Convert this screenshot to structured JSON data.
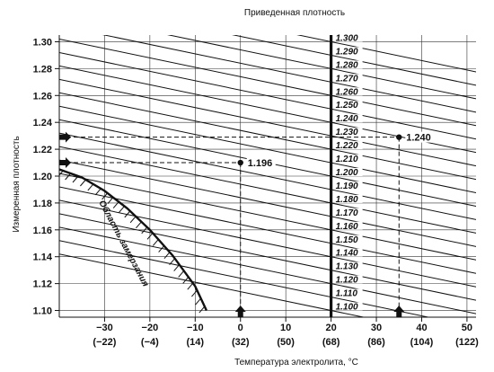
{
  "chart_data": {
    "type": "line",
    "title": "Приведенная плотность",
    "xlabel": "Температура электролита, °С",
    "ylabel": "Измеренная плотность",
    "x_ticks": [
      {
        "c": "−30",
        "f": "(−22)"
      },
      {
        "c": "−20",
        "f": "(−4)"
      },
      {
        "c": "−10",
        "f": "(14)"
      },
      {
        "c": "0",
        "f": "(32)"
      },
      {
        "c": "10",
        "f": "(50)"
      },
      {
        "c": "20",
        "f": "(68)"
      },
      {
        "c": "30",
        "f": "(86)"
      },
      {
        "c": "40",
        "f": "(104)"
      },
      {
        "c": "50",
        "f": "(122)"
      }
    ],
    "y_ticks": [
      "1.10",
      "1.12",
      "1.14",
      "1.16",
      "1.18",
      "1.20",
      "1.22",
      "1.24",
      "1.26",
      "1.28",
      "1.30"
    ],
    "xlim": [
      -40,
      52
    ],
    "ylim": [
      1.095,
      1.305
    ],
    "grid": true,
    "reference_temperature": 20,
    "slope_per_degree": -0.0007,
    "series_labels": [
      "1.300",
      "1.290",
      "1.280",
      "1.270",
      "1.260",
      "1.250",
      "1.240",
      "1.230",
      "1.220",
      "1.210",
      "1.200",
      "1.190",
      "1.180",
      "1.170",
      "1.160",
      "1.150",
      "1.140",
      "1.130",
      "1.120",
      "1.110",
      "1.100"
    ],
    "freezing_zone_label": "Область замерзания",
    "freezing_boundary": [
      {
        "x": -40,
        "y": 1.205
      },
      {
        "x": -35,
        "y": 1.199
      },
      {
        "x": -30,
        "y": 1.189
      },
      {
        "x": -25,
        "y": 1.176
      },
      {
        "x": -20,
        "y": 1.16
      },
      {
        "x": -15,
        "y": 1.141
      },
      {
        "x": -10,
        "y": 1.118
      },
      {
        "x": -7.5,
        "y": 1.1
      }
    ],
    "examples": [
      {
        "x": 0,
        "y": 1.21,
        "label": "1.196"
      },
      {
        "x": 35,
        "y": 1.229,
        "label": "1.240"
      }
    ]
  }
}
